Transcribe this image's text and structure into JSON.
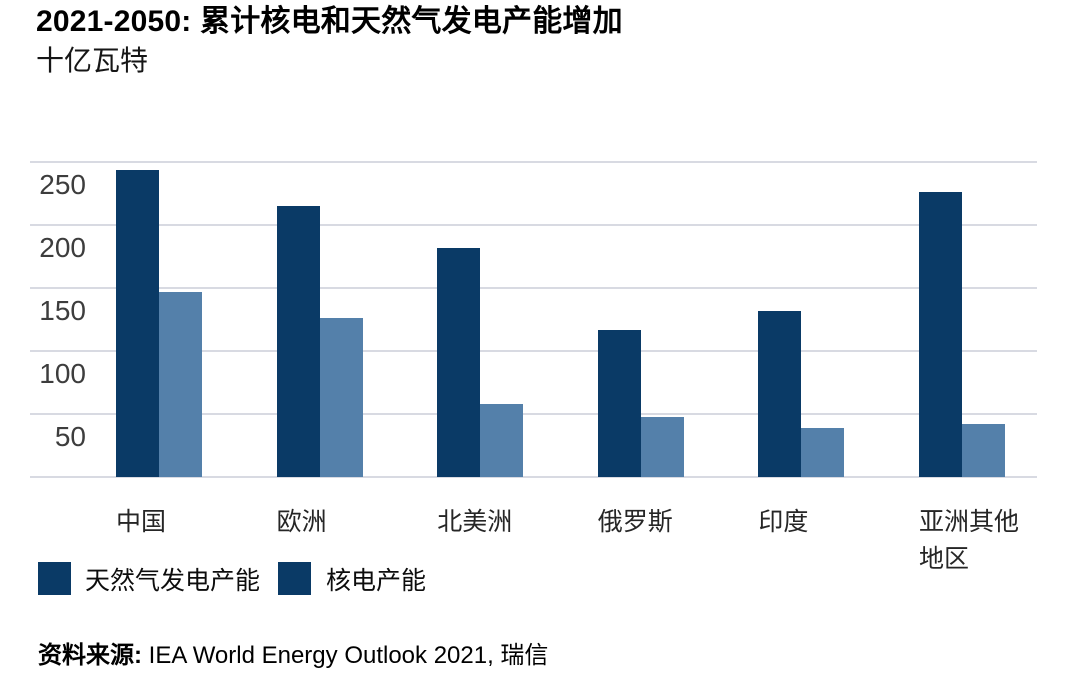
{
  "page": {
    "title": "2021-2050: 累计核电和天然气发电产能增加",
    "subtitle": "十亿瓦特",
    "source_label": "资料来源:",
    "source_text": "IEA World Energy Outlook 2021, 瑞信"
  },
  "legend": {
    "items": [
      {
        "label": "天然气发电产能",
        "swatch_color_as_shown": "#0a3a66"
      },
      {
        "label": "核电产能",
        "swatch_color_as_shown": "#0a3a66"
      }
    ]
  },
  "chart_data": {
    "type": "bar",
    "title": "2021-2050: 累计核电和天然气发电产能增加",
    "unit_label": "十亿瓦特",
    "categories": [
      "中国",
      "欧洲",
      "北美洲",
      "俄罗斯",
      "印度",
      "亚洲其他地区"
    ],
    "series": [
      {
        "name": "天然气发电产能",
        "color": "#0a3a66",
        "values": [
          244,
          215,
          182,
          117,
          132,
          226
        ]
      },
      {
        "name": "核电产能",
        "color": "#5480aa",
        "values": [
          147,
          126,
          58,
          48,
          39,
          42
        ]
      }
    ],
    "ylim": [
      0,
      250
    ],
    "y_ticks": [
      50,
      100,
      150,
      200,
      250
    ],
    "grid": "horizontal gridlines every 50, labels below lines",
    "legend_position": "bottom-left",
    "source": "资料来源: IEA World Energy Outlook 2021, 瑞信"
  },
  "colors": {
    "gas_bar": "#0a3a66",
    "nuclear_bar": "#5480aa",
    "gridline": "#d8dae2",
    "axis_text": "#3d3d3d"
  }
}
